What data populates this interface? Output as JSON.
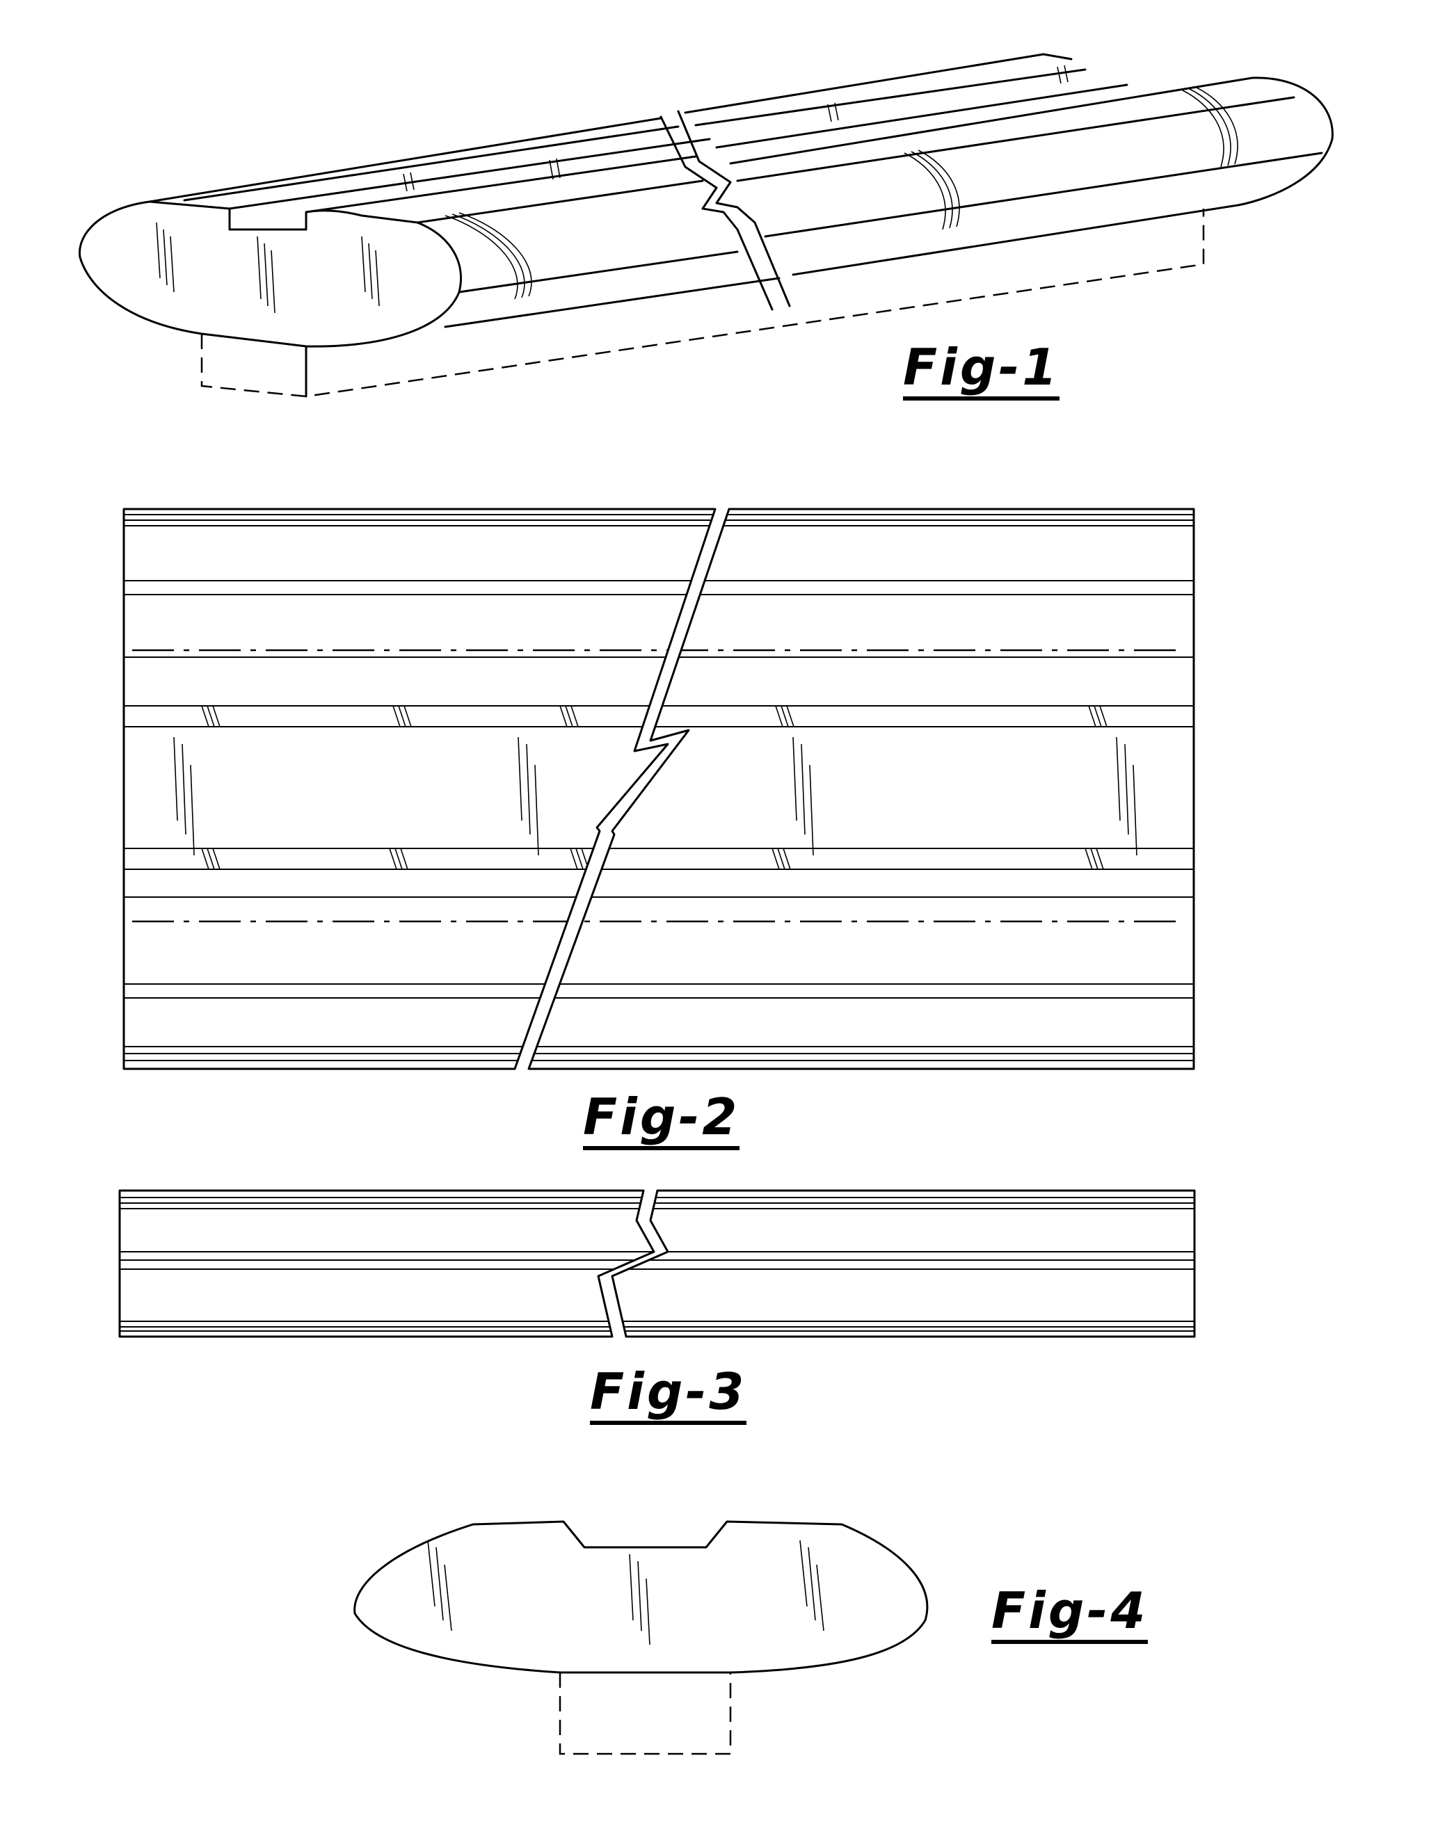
{
  "figures": [
    {
      "id": "fig1",
      "label": "Fig-1",
      "view": "perspective"
    },
    {
      "id": "fig2",
      "label": "Fig-2",
      "view": "top"
    },
    {
      "id": "fig3",
      "label": "Fig-3",
      "view": "side"
    },
    {
      "id": "fig4",
      "label": "Fig-4",
      "view": "end"
    }
  ]
}
